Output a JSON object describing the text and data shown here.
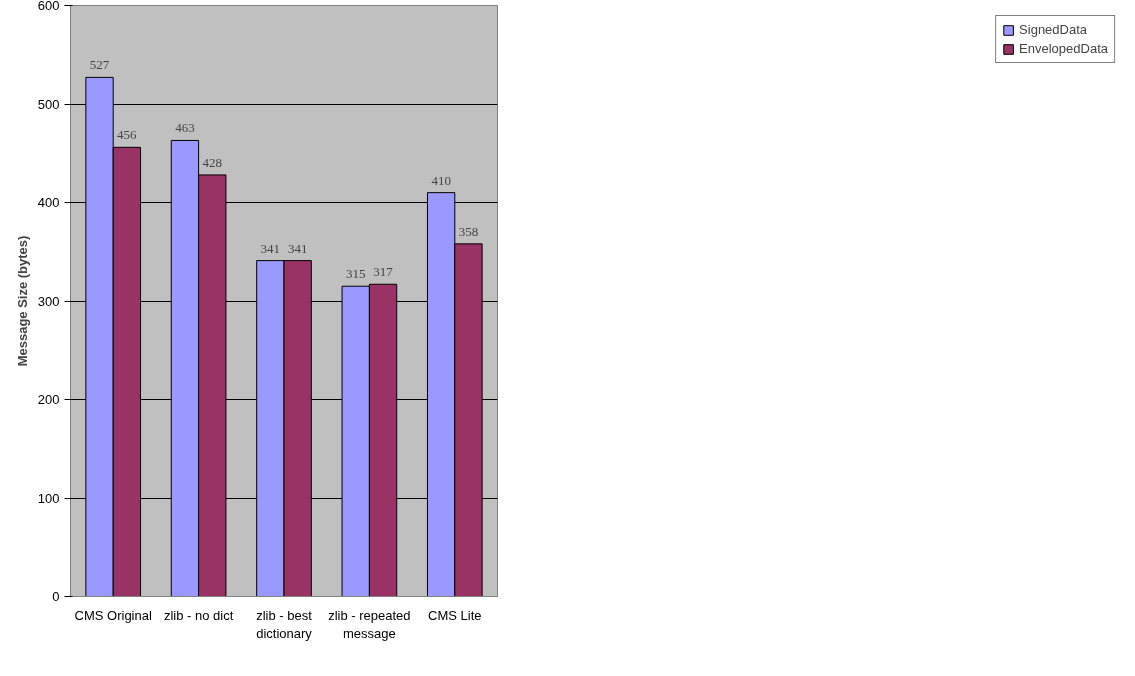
{
  "chart_data": {
    "type": "bar",
    "ylabel": "Message Size (bytes)",
    "categories": [
      "CMS Original",
      "zlib - no dict",
      "zlib - best dictionary",
      "zlib - repeated message",
      "CMS Lite"
    ],
    "series": [
      {
        "name": "SignedData",
        "color": "#9999ff",
        "values": [
          527,
          463,
          341,
          315,
          410
        ]
      },
      {
        "name": "EnvelopedData",
        "color": "#993366",
        "values": [
          456,
          428,
          341,
          317,
          358
        ]
      }
    ],
    "ylim": [
      0,
      600
    ],
    "yticks": [
      0,
      100,
      200,
      300,
      400,
      500,
      600
    ],
    "grid": "y",
    "legend": "right",
    "data_labels": true
  }
}
